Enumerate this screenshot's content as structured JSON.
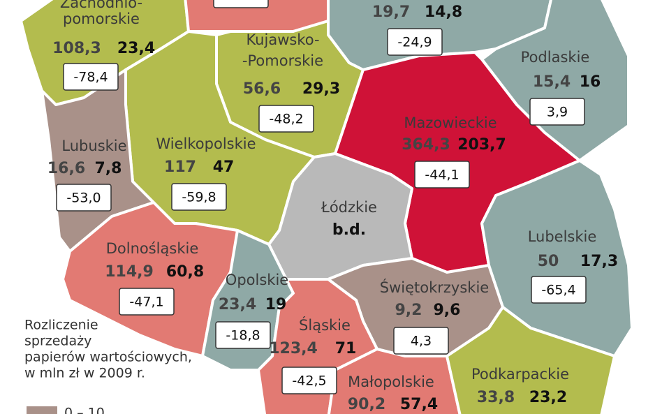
{
  "regions": [
    {
      "name": [
        "Zachodnio-",
        "pomorskie"
      ],
      "values": [
        "108,3",
        "23,4"
      ],
      "change": "-78,4",
      "color": "#b3bc4e"
    },
    {
      "color": "#e27a73"
    },
    {
      "values": [
        "19,7",
        "14,8"
      ],
      "change": "-24,9",
      "color": "#8fa9a6"
    },
    {
      "name": [
        "Podlaskie"
      ],
      "values": [
        "15,4",
        "16"
      ],
      "change": "3,9",
      "color": "#8fa9a6"
    },
    {
      "name": [
        "Kujawsko-",
        "-Pomorskie"
      ],
      "values": [
        "56,6",
        "29,3"
      ],
      "change": "-48,2",
      "color": "#b3bc4e"
    },
    {
      "name": [
        "Mazowieckie"
      ],
      "values": [
        "364,3",
        "203,7"
      ],
      "change": "-44,1",
      "color": "#cf1237"
    },
    {
      "name": [
        "Wielkopolskie"
      ],
      "values": [
        "117",
        "47"
      ],
      "change": "-59,8",
      "color": "#b3bc4e"
    },
    {
      "name": [
        "Lubuskie"
      ],
      "values": [
        "16,6",
        "7,8"
      ],
      "change": "-53,0",
      "color": "#a99189"
    },
    {
      "name": [
        "Łódzkie"
      ],
      "note": "b.d.",
      "color": "#b9b9b9"
    },
    {
      "name": [
        "Lubelskie"
      ],
      "values": [
        "50",
        "17,3"
      ],
      "change": "-65,4",
      "color": "#8fa9a6"
    },
    {
      "name": [
        "Dolnośląskie"
      ],
      "values": [
        "114,9",
        "60,8"
      ],
      "change": "-47,1",
      "color": "#e27a73"
    },
    {
      "name": [
        "Opolskie"
      ],
      "values": [
        "23,4",
        "19"
      ],
      "change": "-18,8",
      "color": "#8fa9a6"
    },
    {
      "name": [
        "Świętokrzyskie"
      ],
      "values": [
        "9,2",
        "9,6"
      ],
      "change": "4,3",
      "color": "#a99189"
    },
    {
      "name": [
        "Śląskie"
      ],
      "values": [
        "123,4",
        "71"
      ],
      "change": "-42,5",
      "color": "#e27a73"
    },
    {
      "name": [
        "Małopolskie"
      ],
      "values": [
        "90,2",
        "57,4"
      ],
      "color": "#e27a73"
    },
    {
      "name": [
        "Podkarpackie"
      ],
      "values": [
        "33,8",
        "23,2"
      ],
      "color": "#b3bc4e"
    }
  ],
  "legend": {
    "title": [
      "Rozliczenie",
      "sprzedaży",
      "papierów wartościowych,",
      "w mln zł w 2009 r."
    ],
    "items": [
      {
        "label": "0 – 10",
        "color": "#a99189"
      }
    ]
  }
}
